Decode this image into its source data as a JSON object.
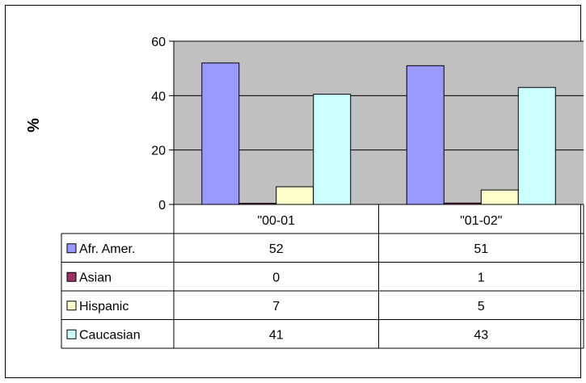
{
  "chart_data": {
    "type": "bar",
    "title": "",
    "xlabel": "",
    "ylabel": "%",
    "ylim": [
      0,
      60
    ],
    "yticks": [
      "0",
      "20",
      "40",
      "60"
    ],
    "grid": true,
    "legend": "data-table-left",
    "plot_background": "#c0c0c0",
    "categories": [
      "\"00-01",
      "\"01-02\""
    ],
    "series": [
      {
        "name": "Afr. Amer.",
        "color": "#9999ff",
        "values": [
          52,
          51
        ],
        "labels": [
          "52",
          "51"
        ]
      },
      {
        "name": "Asian",
        "color": "#993366",
        "values": [
          0.4,
          0.5
        ],
        "labels": [
          "0",
          "1"
        ]
      },
      {
        "name": "Hispanic",
        "color": "#ffffcc",
        "values": [
          6.5,
          5.3
        ],
        "labels": [
          "7",
          "5"
        ]
      },
      {
        "name": "Caucasian",
        "color": "#ccffff",
        "values": [
          40.5,
          43
        ],
        "labels": [
          "41",
          "43"
        ]
      }
    ]
  }
}
